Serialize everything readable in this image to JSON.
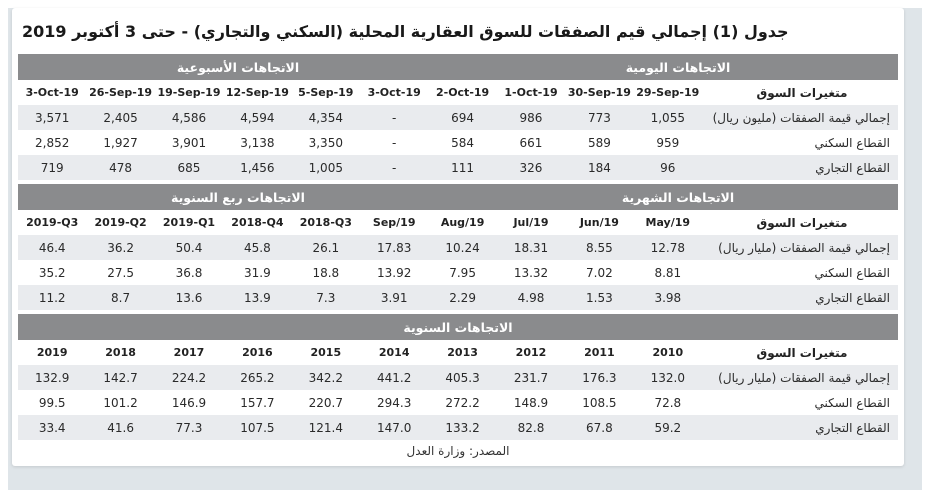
{
  "title": "جدول (1) إجمالي قيم الصفقات للسوق العقارية المحلية (السكني والتجاري) - حتى 3 أكتوبر 2019",
  "source": "المصدر: وزارة العدل",
  "variables_label": "متغيرات السوق",
  "colors": {
    "section_band": "#8a8b8d",
    "stripe_row": "#e9ebee",
    "page_frame": "#dfe5e9",
    "band_text": "#ffffff",
    "body_text": "#2a2a2a"
  },
  "sections": [
    {
      "band_left": "الاتجاهات الأسبوعية",
      "band_right": "الاتجاهات اليومية",
      "columns": [
        "3-Oct-19",
        "26-Sep-19",
        "19-Sep-19",
        "12-Sep-19",
        "5-Sep-19",
        "3-Oct-19",
        "2-Oct-19",
        "1-Oct-19",
        "30-Sep-19",
        "29-Sep-19"
      ],
      "rows": [
        {
          "label": "إجمالي قيمة الصفقات (مليون ريال)",
          "values": [
            "3,571",
            "2,405",
            "4,586",
            "4,594",
            "4,354",
            "-",
            "694",
            "986",
            "773",
            "1,055"
          ]
        },
        {
          "label": "القطاع السكني",
          "values": [
            "2,852",
            "1,927",
            "3,901",
            "3,138",
            "3,350",
            "-",
            "584",
            "661",
            "589",
            "959"
          ]
        },
        {
          "label": "القطاع التجاري",
          "values": [
            "719",
            "478",
            "685",
            "1,456",
            "1,005",
            "-",
            "111",
            "326",
            "184",
            "96"
          ]
        }
      ]
    },
    {
      "band_left": "الاتجاهات ربع السنوية",
      "band_right": "الاتجاهات الشهرية",
      "columns": [
        "2019-Q3",
        "2019-Q2",
        "2019-Q1",
        "2018-Q4",
        "2018-Q3",
        "Sep/19",
        "Aug/19",
        "Jul/19",
        "Jun/19",
        "May/19"
      ],
      "rows": [
        {
          "label": "إجمالي قيمة الصفقات (مليار ريال)",
          "values": [
            "46.4",
            "36.2",
            "50.4",
            "45.8",
            "26.1",
            "17.83",
            "10.24",
            "18.31",
            "8.55",
            "12.78"
          ]
        },
        {
          "label": "القطاع السكني",
          "values": [
            "35.2",
            "27.5",
            "36.8",
            "31.9",
            "18.8",
            "13.92",
            "7.95",
            "13.32",
            "7.02",
            "8.81"
          ]
        },
        {
          "label": "القطاع التجاري",
          "values": [
            "11.2",
            "8.7",
            "13.6",
            "13.9",
            "7.3",
            "3.91",
            "2.29",
            "4.98",
            "1.53",
            "3.98"
          ]
        }
      ]
    },
    {
      "band_center": "الاتجاهات السنوية",
      "columns": [
        "2019",
        "2018",
        "2017",
        "2016",
        "2015",
        "2014",
        "2013",
        "2012",
        "2011",
        "2010"
      ],
      "rows": [
        {
          "label": "إجمالي قيمة الصفقات (مليار ريال)",
          "values": [
            "132.9",
            "142.7",
            "224.2",
            "265.2",
            "342.2",
            "441.2",
            "405.3",
            "231.7",
            "176.3",
            "132.0"
          ]
        },
        {
          "label": "القطاع السكني",
          "values": [
            "99.5",
            "101.2",
            "146.9",
            "157.7",
            "220.7",
            "294.3",
            "272.2",
            "148.9",
            "108.5",
            "72.8"
          ]
        },
        {
          "label": "القطاع التجاري",
          "values": [
            "33.4",
            "41.6",
            "77.3",
            "107.5",
            "121.4",
            "147.0",
            "133.2",
            "82.8",
            "67.8",
            "59.2"
          ]
        }
      ]
    }
  ]
}
